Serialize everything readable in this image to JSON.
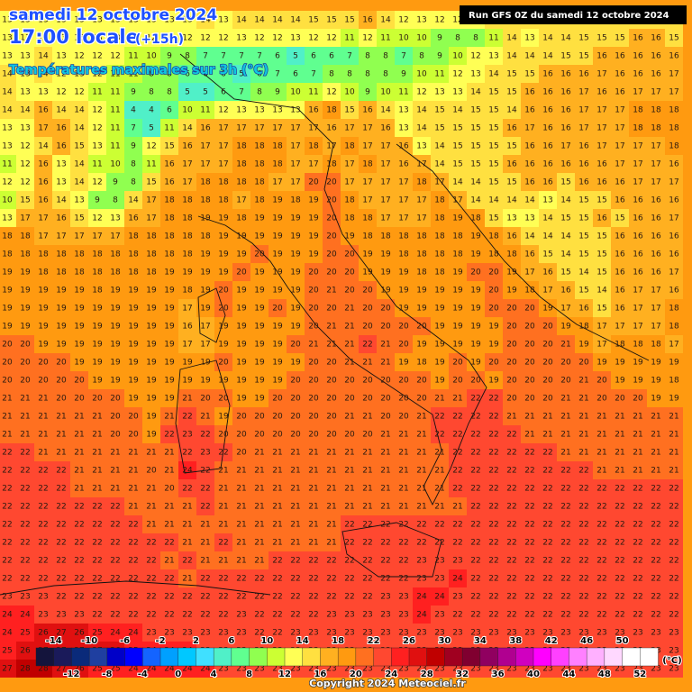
{
  "header": {
    "date": "samedi 12 octobre 2024",
    "time": "17:00 locale",
    "lead": "(+15h)",
    "field": "Températures maximales sur 3h (°C)",
    "run": "Run GFS 0Z du samedi 12 octobre 2024",
    "copyright": "Copyright 2024 Meteociel.fr"
  },
  "legend": {
    "range": [
      -16,
      54
    ],
    "unit": "(°C)",
    "colors": [
      "#14143c",
      "#1a1a5a",
      "#0a2a7a",
      "#1f3fa0",
      "#0000c8",
      "#0000ff",
      "#1464ff",
      "#00a0ff",
      "#00c8ff",
      "#40e0ff",
      "#50f0c8",
      "#60ff90",
      "#90ff50",
      "#ccff33",
      "#ffff55",
      "#ffe040",
      "#ffb020",
      "#ff9a10",
      "#ff7020",
      "#ff4830",
      "#ff2020",
      "#e01010",
      "#c00000",
      "#a00020",
      "#800030",
      "#900060",
      "#b00090",
      "#d000c0",
      "#ff00ff",
      "#ff40ff",
      "#ff80ff",
      "#ffb0ff",
      "#ffd8ff",
      "#ffffff",
      "#ffffff"
    ],
    "top_labels": [
      -14,
      -10,
      -6,
      -2,
      2,
      6,
      10,
      14,
      18,
      22,
      26,
      30,
      34,
      38,
      42,
      46,
      50
    ],
    "bottom_labels": [
      -12,
      -8,
      -4,
      0,
      4,
      8,
      12,
      16,
      20,
      24,
      28,
      32,
      36,
      40,
      44,
      48,
      52
    ]
  },
  "grid": {
    "rows": [
      [
        13,
        13,
        13,
        13,
        13,
        13,
        13,
        13,
        13,
        13,
        13,
        14,
        13,
        14,
        14,
        14,
        14,
        15,
        15,
        15,
        16,
        14,
        12,
        13,
        12,
        12,
        13,
        14,
        14,
        14,
        14,
        14,
        15,
        15,
        15,
        15,
        15,
        15
      ],
      [
        13,
        13,
        13,
        13,
        13,
        13,
        13,
        12,
        12,
        12,
        12,
        12,
        12,
        13,
        12,
        12,
        13,
        12,
        12,
        11,
        12,
        11,
        10,
        10,
        9,
        8,
        8,
        11,
        14,
        13,
        14,
        14,
        15,
        15,
        15,
        16,
        16,
        15
      ],
      [
        13,
        13,
        14,
        13,
        12,
        12,
        12,
        11,
        10,
        9,
        8,
        7,
        7,
        7,
        7,
        6,
        5,
        6,
        6,
        7,
        8,
        8,
        7,
        8,
        9,
        10,
        12,
        13,
        14,
        14,
        14,
        15,
        15,
        16,
        16,
        16,
        16,
        16
      ],
      [
        14,
        13,
        14,
        12,
        13,
        12,
        11,
        11,
        8,
        8,
        6,
        6,
        6,
        5,
        6,
        7,
        6,
        7,
        8,
        8,
        8,
        8,
        9,
        10,
        11,
        12,
        13,
        14,
        15,
        15,
        16,
        16,
        16,
        17,
        16,
        16,
        16,
        17
      ],
      [
        14,
        13,
        13,
        12,
        12,
        11,
        11,
        9,
        8,
        8,
        5,
        5,
        6,
        7,
        8,
        9,
        10,
        11,
        12,
        10,
        9,
        10,
        11,
        12,
        13,
        13,
        14,
        15,
        15,
        16,
        16,
        16,
        17,
        16,
        16,
        17,
        17,
        17
      ],
      [
        14,
        14,
        16,
        14,
        14,
        12,
        11,
        4,
        4,
        6,
        10,
        11,
        12,
        13,
        13,
        13,
        13,
        16,
        18,
        15,
        16,
        14,
        13,
        14,
        15,
        14,
        15,
        15,
        14,
        16,
        16,
        16,
        17,
        17,
        17,
        18,
        18,
        18
      ],
      [
        13,
        13,
        17,
        16,
        14,
        12,
        11,
        7,
        5,
        11,
        14,
        16,
        17,
        17,
        17,
        17,
        17,
        17,
        16,
        17,
        17,
        16,
        13,
        14,
        15,
        15,
        15,
        15,
        16,
        17,
        16,
        16,
        17,
        17,
        17,
        18,
        18,
        18
      ],
      [
        13,
        12,
        14,
        16,
        15,
        13,
        11,
        9,
        12,
        15,
        16,
        17,
        17,
        18,
        18,
        18,
        17,
        18,
        17,
        18,
        17,
        17,
        16,
        13,
        14,
        15,
        15,
        15,
        15,
        16,
        16,
        17,
        16,
        17,
        17,
        17,
        17,
        18
      ],
      [
        11,
        12,
        16,
        13,
        14,
        11,
        10,
        8,
        11,
        16,
        17,
        17,
        17,
        18,
        18,
        18,
        17,
        17,
        18,
        17,
        18,
        17,
        16,
        17,
        14,
        15,
        15,
        15,
        16,
        16,
        16,
        16,
        16,
        16,
        17,
        17,
        17,
        16
      ],
      [
        12,
        12,
        16,
        13,
        14,
        12,
        9,
        8,
        15,
        16,
        17,
        18,
        18,
        18,
        18,
        17,
        17,
        20,
        20,
        17,
        17,
        17,
        17,
        18,
        17,
        14,
        14,
        15,
        15,
        16,
        16,
        15,
        16,
        16,
        16,
        17,
        17,
        17
      ],
      [
        10,
        15,
        16,
        14,
        13,
        9,
        8,
        14,
        17,
        18,
        18,
        18,
        18,
        17,
        18,
        19,
        18,
        19,
        20,
        18,
        17,
        17,
        17,
        17,
        18,
        17,
        14,
        14,
        14,
        14,
        13,
        14,
        15,
        15,
        16,
        16,
        16,
        16
      ],
      [
        13,
        17,
        17,
        16,
        15,
        12,
        13,
        16,
        17,
        18,
        18,
        19,
        19,
        18,
        19,
        19,
        19,
        19,
        20,
        18,
        18,
        17,
        17,
        17,
        18,
        19,
        18,
        15,
        13,
        13,
        14,
        15,
        15,
        16,
        15,
        16,
        16,
        17
      ],
      [
        18,
        18,
        17,
        17,
        17,
        17,
        17,
        18,
        18,
        18,
        18,
        18,
        19,
        19,
        19,
        19,
        19,
        19,
        20,
        19,
        18,
        18,
        18,
        18,
        18,
        18,
        19,
        18,
        16,
        14,
        14,
        14,
        15,
        15,
        16,
        16,
        16,
        16
      ],
      [
        18,
        18,
        18,
        18,
        18,
        18,
        18,
        18,
        18,
        18,
        18,
        19,
        19,
        19,
        20,
        19,
        19,
        19,
        20,
        20,
        19,
        19,
        18,
        18,
        18,
        18,
        19,
        18,
        18,
        16,
        15,
        14,
        15,
        15,
        16,
        16,
        16,
        16
      ],
      [
        19,
        19,
        18,
        18,
        18,
        18,
        18,
        18,
        18,
        19,
        19,
        19,
        19,
        20,
        19,
        19,
        19,
        20,
        20,
        20,
        19,
        19,
        19,
        18,
        18,
        19,
        20,
        20,
        19,
        17,
        16,
        15,
        14,
        15,
        16,
        16,
        16,
        17
      ],
      [
        19,
        19,
        19,
        19,
        19,
        18,
        19,
        19,
        19,
        19,
        18,
        19,
        20,
        19,
        19,
        19,
        19,
        20,
        21,
        20,
        20,
        19,
        19,
        19,
        19,
        19,
        19,
        20,
        19,
        18,
        17,
        16,
        15,
        14,
        16,
        17,
        17,
        16
      ],
      [
        19,
        19,
        19,
        19,
        19,
        19,
        19,
        19,
        19,
        19,
        17,
        19,
        20,
        19,
        19,
        20,
        19,
        20,
        20,
        21,
        20,
        20,
        19,
        19,
        19,
        19,
        19,
        20,
        20,
        20,
        19,
        17,
        16,
        15,
        16,
        17,
        17,
        18
      ],
      [
        19,
        19,
        19,
        19,
        19,
        19,
        19,
        19,
        19,
        19,
        16,
        17,
        19,
        19,
        19,
        19,
        19,
        20,
        21,
        21,
        20,
        20,
        20,
        20,
        19,
        19,
        19,
        19,
        20,
        20,
        20,
        19,
        18,
        17,
        17,
        17,
        17,
        18
      ],
      [
        20,
        20,
        19,
        19,
        19,
        19,
        19,
        19,
        19,
        19,
        17,
        17,
        19,
        19,
        19,
        19,
        20,
        21,
        21,
        21,
        22,
        21,
        20,
        19,
        19,
        19,
        19,
        19,
        20,
        20,
        20,
        21,
        19,
        17,
        18,
        18,
        18,
        17
      ],
      [
        20,
        20,
        20,
        20,
        19,
        19,
        19,
        19,
        19,
        19,
        19,
        19,
        20,
        19,
        19,
        19,
        19,
        20,
        20,
        21,
        21,
        21,
        19,
        18,
        19,
        20,
        19,
        20,
        20,
        20,
        20,
        20,
        20,
        19,
        19,
        19,
        19,
        19
      ],
      [
        20,
        20,
        20,
        20,
        20,
        19,
        19,
        19,
        19,
        19,
        19,
        19,
        19,
        19,
        19,
        19,
        20,
        20,
        20,
        20,
        20,
        20,
        20,
        20,
        19,
        20,
        20,
        19,
        20,
        20,
        20,
        20,
        21,
        20,
        19,
        19,
        19,
        18
      ],
      [
        21,
        21,
        21,
        20,
        20,
        20,
        20,
        19,
        19,
        19,
        21,
        20,
        20,
        19,
        19,
        20,
        20,
        20,
        20,
        20,
        20,
        20,
        20,
        20,
        21,
        21,
        22,
        22,
        20,
        20,
        20,
        21,
        21,
        20,
        20,
        20,
        19,
        19
      ],
      [
        21,
        21,
        21,
        21,
        21,
        21,
        20,
        20,
        19,
        21,
        22,
        21,
        19,
        20,
        20,
        20,
        20,
        20,
        20,
        21,
        21,
        20,
        20,
        21,
        22,
        22,
        22,
        22,
        21,
        21,
        21,
        21,
        21,
        21,
        21,
        21,
        21,
        21
      ],
      [
        21,
        21,
        21,
        21,
        21,
        21,
        20,
        20,
        19,
        22,
        23,
        22,
        20,
        20,
        20,
        20,
        20,
        20,
        20,
        20,
        20,
        21,
        21,
        21,
        22,
        22,
        22,
        22,
        22,
        21,
        21,
        21,
        21,
        21,
        21,
        21,
        21,
        21
      ],
      [
        22,
        22,
        21,
        21,
        21,
        21,
        21,
        21,
        21,
        21,
        22,
        23,
        22,
        20,
        21,
        21,
        21,
        21,
        21,
        21,
        21,
        21,
        21,
        21,
        21,
        22,
        22,
        22,
        22,
        22,
        22,
        21,
        21,
        21,
        21,
        21,
        21,
        21
      ],
      [
        22,
        22,
        22,
        22,
        21,
        21,
        21,
        21,
        20,
        21,
        24,
        22,
        21,
        21,
        21,
        21,
        21,
        21,
        21,
        21,
        21,
        21,
        21,
        21,
        21,
        22,
        22,
        22,
        22,
        22,
        22,
        22,
        22,
        21,
        21,
        21,
        21,
        21
      ],
      [
        22,
        22,
        22,
        22,
        21,
        21,
        21,
        21,
        21,
        20,
        22,
        22,
        21,
        21,
        21,
        21,
        21,
        21,
        21,
        21,
        21,
        21,
        21,
        21,
        21,
        22,
        22,
        22,
        22,
        22,
        22,
        22,
        22,
        22,
        22,
        22,
        22,
        22
      ],
      [
        22,
        22,
        22,
        22,
        22,
        22,
        22,
        21,
        21,
        21,
        21,
        22,
        21,
        21,
        21,
        21,
        21,
        21,
        21,
        21,
        21,
        21,
        21,
        21,
        21,
        21,
        22,
        22,
        22,
        22,
        22,
        22,
        22,
        22,
        22,
        22,
        22,
        22
      ],
      [
        22,
        22,
        22,
        22,
        22,
        22,
        22,
        22,
        21,
        21,
        21,
        21,
        21,
        21,
        21,
        21,
        21,
        21,
        21,
        22,
        22,
        22,
        22,
        22,
        22,
        22,
        22,
        22,
        22,
        22,
        22,
        22,
        22,
        22,
        22,
        22,
        22,
        22
      ],
      [
        22,
        22,
        22,
        22,
        22,
        22,
        22,
        22,
        22,
        22,
        21,
        21,
        22,
        21,
        21,
        21,
        21,
        21,
        21,
        22,
        22,
        22,
        22,
        22,
        22,
        22,
        22,
        22,
        22,
        22,
        22,
        22,
        22,
        22,
        22,
        22,
        22,
        22
      ],
      [
        22,
        22,
        22,
        22,
        22,
        22,
        22,
        22,
        22,
        21,
        22,
        21,
        21,
        21,
        21,
        22,
        22,
        22,
        22,
        22,
        22,
        22,
        22,
        23,
        23,
        23,
        22,
        22,
        22,
        22,
        22,
        22,
        22,
        22,
        22,
        22,
        22,
        22
      ],
      [
        22,
        22,
        22,
        22,
        22,
        22,
        22,
        22,
        22,
        22,
        21,
        22,
        22,
        22,
        22,
        22,
        22,
        22,
        22,
        22,
        22,
        22,
        22,
        23,
        23,
        24,
        22,
        22,
        22,
        22,
        22,
        22,
        22,
        22,
        22,
        22,
        22,
        22
      ],
      [
        23,
        23,
        23,
        22,
        22,
        22,
        22,
        22,
        22,
        22,
        22,
        22,
        22,
        22,
        22,
        22,
        22,
        22,
        22,
        22,
        22,
        23,
        23,
        24,
        24,
        23,
        22,
        22,
        22,
        22,
        22,
        22,
        22,
        22,
        22,
        22,
        22,
        22
      ],
      [
        24,
        24,
        23,
        23,
        23,
        22,
        22,
        22,
        22,
        22,
        22,
        22,
        22,
        23,
        22,
        22,
        22,
        22,
        23,
        23,
        23,
        23,
        23,
        24,
        23,
        22,
        22,
        22,
        22,
        22,
        22,
        22,
        22,
        22,
        22,
        22,
        22,
        22
      ],
      [
        24,
        25,
        26,
        27,
        26,
        25,
        24,
        24,
        23,
        23,
        23,
        23,
        23,
        23,
        22,
        22,
        23,
        23,
        23,
        23,
        23,
        23,
        23,
        23,
        23,
        23,
        23,
        23,
        23,
        23,
        23,
        23,
        23,
        23,
        23,
        23,
        23,
        23
      ],
      [
        25,
        26,
        27,
        27,
        27,
        27,
        26,
        25,
        24,
        24,
        24,
        23,
        23,
        23,
        23,
        23,
        23,
        23,
        23,
        23,
        23,
        23,
        23,
        23,
        23,
        23,
        23,
        23,
        23,
        23,
        23,
        23,
        23,
        23,
        23,
        23,
        23,
        23
      ],
      [
        27,
        28,
        28,
        27,
        26,
        25,
        25,
        24,
        24,
        24,
        24,
        24,
        23,
        23,
        23,
        23,
        23,
        23,
        23,
        23,
        23,
        23,
        23,
        23,
        23,
        23,
        23,
        23,
        23,
        23,
        23,
        23,
        23,
        23,
        23,
        23,
        23,
        23
      ]
    ]
  }
}
